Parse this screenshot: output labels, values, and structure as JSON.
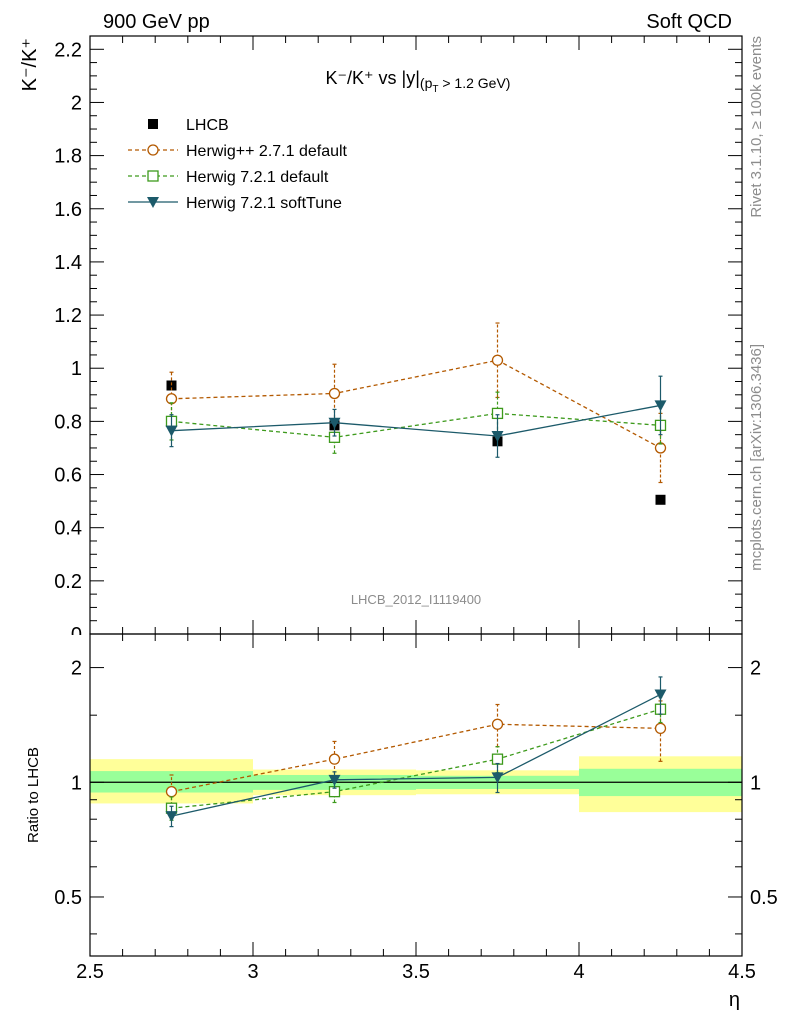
{
  "header": {
    "left": "900 GeV pp",
    "right": "Soft QCD"
  },
  "side": {
    "rivet": "Rivet 3.1.10, ≥ 100k events",
    "mcplots": "mcplots.cern.ch [arXiv:1306.3436]"
  },
  "watermark": "LHCB_2012_I1119400",
  "chart_data": [
    {
      "type": "scatter",
      "title_main": "K⁻/K⁺ vs |y|",
      "title_sub": "(p",
      "title_sub_index": "T",
      "title_sub_end": " > 1.2 GeV)",
      "ylabel": "K⁻/K⁺",
      "xlabel": "η",
      "xlim": [
        2.5,
        4.5
      ],
      "ylim": [
        0,
        2.25
      ],
      "yticks": [
        "0",
        "0.2",
        "0.4",
        "0.6",
        "0.8",
        "1",
        "1.2",
        "1.4",
        "1.6",
        "1.8",
        "2",
        "2.2"
      ],
      "xticks": [
        "2.5",
        "3",
        "3.5",
        "4",
        "4.5"
      ],
      "legend_position": "top-left",
      "series": [
        {
          "name": "LHCB",
          "color": "#000000",
          "marker": "filled-square",
          "x": [
            2.75,
            3.25,
            3.75,
            4.25
          ],
          "y": [
            0.935,
            0.785,
            0.725,
            0.505
          ]
        },
        {
          "name": "Herwig++ 2.7.1 default",
          "color": "#b35900",
          "marker": "open-circle",
          "x": [
            2.75,
            3.25,
            3.75,
            4.25
          ],
          "y": [
            0.885,
            0.905,
            1.03,
            0.7
          ],
          "err": [
            0.1,
            0.11,
            0.14,
            0.13
          ]
        },
        {
          "name": "Herwig 7.2.1 default",
          "color": "#3d9a1c",
          "marker": "open-square",
          "x": [
            2.75,
            3.25,
            3.75,
            4.25
          ],
          "y": [
            0.8,
            0.74,
            0.83,
            0.785
          ],
          "err": [
            0.07,
            0.06,
            0.08,
            0.07
          ]
        },
        {
          "name": "Herwig 7.2.1 softTune",
          "color": "#1c5a6a",
          "marker": "filled-triangle-down",
          "x": [
            2.75,
            3.25,
            3.75,
            4.25
          ],
          "y": [
            0.765,
            0.795,
            0.745,
            0.86
          ],
          "err": [
            0.06,
            0.05,
            0.08,
            0.11
          ]
        }
      ]
    },
    {
      "type": "scatter",
      "ylabel": "Ratio to LHCB",
      "xlabel": "η",
      "xlim": [
        2.5,
        4.5
      ],
      "ylim": [
        0.35,
        2.45
      ],
      "yscale": "log",
      "yticks": [
        "0.5",
        "1",
        "2"
      ],
      "xticks": [
        "2.5",
        "3",
        "3.5",
        "4",
        "4.5"
      ],
      "bands": [
        {
          "x": [
            2.5,
            3.0
          ],
          "inner": [
            0.94,
            1.07
          ],
          "outer": [
            0.88,
            1.15
          ]
        },
        {
          "x": [
            3.0,
            3.5
          ],
          "inner": [
            0.955,
            1.045
          ],
          "outer": [
            0.925,
            1.08
          ]
        },
        {
          "x": [
            3.5,
            4.0
          ],
          "inner": [
            0.96,
            1.04
          ],
          "outer": [
            0.93,
            1.075
          ]
        },
        {
          "x": [
            4.0,
            4.5
          ],
          "inner": [
            0.92,
            1.085
          ],
          "outer": [
            0.835,
            1.17
          ]
        }
      ],
      "series": [
        {
          "name": "Herwig++ 2.7.1 default",
          "color": "#b35900",
          "marker": "open-circle",
          "x": [
            2.75,
            3.25,
            3.75,
            4.25
          ],
          "y": [
            0.945,
            1.15,
            1.42,
            1.385
          ],
          "err": [
            0.1,
            0.13,
            0.18,
            0.25
          ]
        },
        {
          "name": "Herwig 7.2.1 default",
          "color": "#3d9a1c",
          "marker": "open-square",
          "x": [
            2.75,
            3.25,
            3.75,
            4.25
          ],
          "y": [
            0.855,
            0.945,
            1.15,
            1.555
          ],
          "err": [
            0.06,
            0.06,
            0.09,
            0.12
          ]
        },
        {
          "name": "Herwig 7.2.1 softTune",
          "color": "#1c5a6a",
          "marker": "filled-triangle-down",
          "x": [
            2.75,
            3.25,
            3.75,
            4.25
          ],
          "y": [
            0.815,
            1.015,
            1.03,
            1.7
          ],
          "err": [
            0.05,
            0.05,
            0.09,
            0.19
          ]
        }
      ]
    }
  ]
}
